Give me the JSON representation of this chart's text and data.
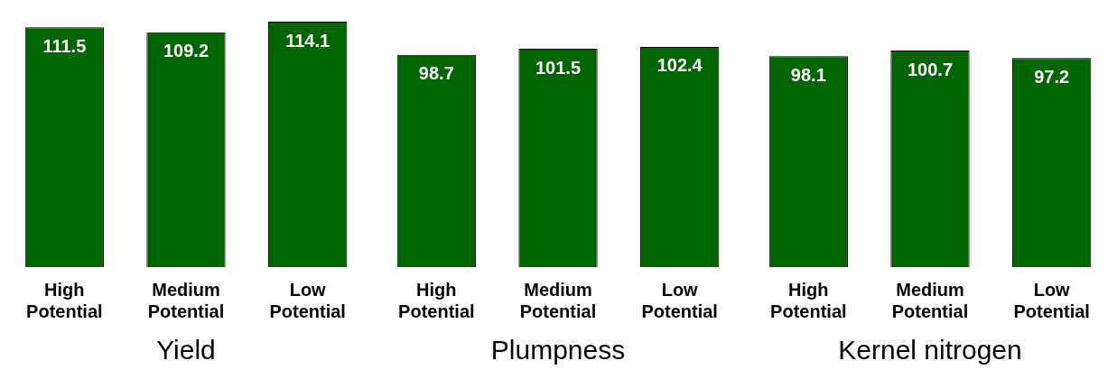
{
  "chart_data": [
    {
      "type": "bar",
      "title": "Yield",
      "categories": [
        "High Potential",
        "Medium Potential",
        "Low Potential"
      ],
      "values": [
        111.5,
        109.2,
        114.1
      ],
      "color": "#006400",
      "data_labels": true,
      "grid": false,
      "legend": false
    },
    {
      "type": "bar",
      "title": "Plumpness",
      "categories": [
        "High Potential",
        "Medium Potential",
        "Low Potential"
      ],
      "values": [
        98.7,
        101.5,
        102.4
      ],
      "color": "#006400",
      "data_labels": true,
      "grid": false,
      "legend": false
    },
    {
      "type": "bar",
      "title": "Kernel nitrogen",
      "categories": [
        "High Potential",
        "Medium Potential",
        "Low Potential"
      ],
      "values": [
        98.1,
        100.7,
        97.2
      ],
      "color": "#006400",
      "data_labels": true,
      "grid": false,
      "legend": false
    }
  ]
}
